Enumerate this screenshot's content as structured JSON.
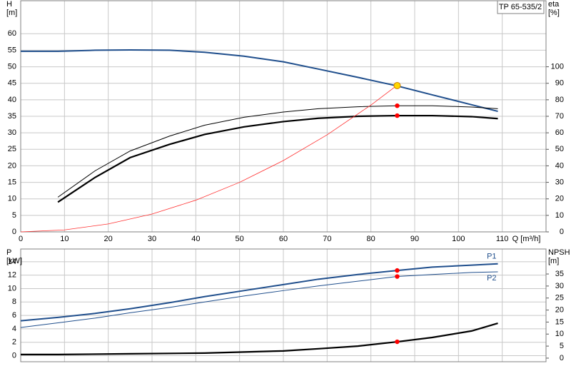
{
  "chart_data": [
    {
      "type": "line",
      "title": "TP 65-535/2",
      "ylabel": "H",
      "yunit": "[m]",
      "y2label": "eta",
      "y2unit": "[%]",
      "xlabel": "Q [m³/h]",
      "xlim": [
        0,
        120
      ],
      "xticks": [
        0,
        10,
        20,
        30,
        40,
        50,
        60,
        70,
        80,
        90,
        100,
        110
      ],
      "xtick_labels": true,
      "ylim": [
        0,
        70
      ],
      "yticks": [
        0,
        5,
        10,
        15,
        20,
        25,
        30,
        35,
        40,
        45,
        50,
        55,
        60
      ],
      "y2lim": [
        0,
        140
      ],
      "y2ticks": [
        0,
        10,
        20,
        30,
        40,
        50,
        60,
        70,
        80,
        90,
        100
      ],
      "grid": true,
      "series": [
        {
          "color": "#1f4e8c",
          "linewidth": 2,
          "axis": "y",
          "x": [
            0,
            8.5,
            17,
            25,
            34,
            42,
            51,
            60,
            68,
            77,
            86,
            94,
            103,
            109
          ],
          "values": [
            54.7,
            54.7,
            55,
            55.1,
            55,
            54.4,
            53.2,
            51.5,
            49.3,
            46.8,
            44.2,
            41.5,
            38.5,
            36.5
          ]
        },
        {
          "color": "#000000",
          "linewidth": 1,
          "axis": "y2",
          "x": [
            8.5,
            17,
            25,
            34,
            42,
            51,
            60,
            68,
            77,
            86,
            94,
            103,
            109
          ],
          "values": [
            21,
            37,
            49,
            58,
            64.6,
            69.4,
            72.6,
            74.6,
            75.8,
            76.4,
            76.4,
            75.6,
            74.6
          ]
        },
        {
          "color": "#000000",
          "linewidth": 2.2,
          "axis": "y2",
          "x": [
            8.5,
            17,
            25,
            34,
            42,
            51,
            60,
            68,
            77,
            86,
            94,
            103,
            109
          ],
          "values": [
            18,
            33,
            45,
            53,
            59,
            63.6,
            66.8,
            68.8,
            70,
            70.4,
            70.4,
            69.8,
            68.6
          ]
        },
        {
          "color": "#ff3030",
          "linewidth": 0.8,
          "axis": "y",
          "x": [
            0,
            10,
            20,
            30,
            40,
            50,
            60,
            70,
            80,
            86
          ],
          "values": [
            0,
            0.6,
            2.4,
            5.4,
            9.6,
            15,
            21.6,
            29.4,
            38.4,
            44.4
          ]
        }
      ],
      "points": [
        {
          "x": 86,
          "y": 76.4,
          "axis": "y2",
          "color": "#ff0000"
        },
        {
          "x": 86,
          "y": 70.4,
          "axis": "y2",
          "color": "#ff0000"
        },
        {
          "x": 86,
          "y": 44.3,
          "axis": "y",
          "color": "#ffd700"
        }
      ]
    },
    {
      "type": "line",
      "ylabel": "P",
      "yunit": "[kW]",
      "y2label": "NPSH",
      "y2unit": "[m]",
      "xlim": [
        0,
        120
      ],
      "xticks": [
        0,
        10,
        20,
        30,
        40,
        50,
        60,
        70,
        80,
        90,
        100,
        110
      ],
      "xtick_labels": false,
      "ylim": [
        -0.9,
        15.9
      ],
      "yticks": [
        0,
        2,
        4,
        6,
        8,
        10,
        12,
        14
      ],
      "y2lim": [
        -1.5,
        45.4
      ],
      "y2ticks": [
        0,
        5,
        10,
        15,
        20,
        25,
        30,
        35
      ],
      "grid": true,
      "series": [
        {
          "name": "P1",
          "color": "#1f4e8c",
          "linewidth": 2,
          "axis": "y",
          "x": [
            0,
            8.5,
            17,
            25,
            34,
            42,
            51,
            60,
            68,
            77,
            86,
            94,
            103,
            109
          ],
          "values": [
            5.2,
            5.7,
            6.3,
            7.0,
            7.9,
            8.8,
            9.7,
            10.6,
            11.4,
            12.1,
            12.7,
            13.2,
            13.5,
            13.7
          ]
        },
        {
          "name": "P2",
          "color": "#1f4e8c",
          "linewidth": 1,
          "axis": "y",
          "x": [
            0,
            8.5,
            17,
            25,
            34,
            42,
            51,
            60,
            68,
            77,
            86,
            94,
            103,
            109
          ],
          "values": [
            4.2,
            4.9,
            5.6,
            6.4,
            7.2,
            8.0,
            8.9,
            9.7,
            10.4,
            11.1,
            11.8,
            12.1,
            12.4,
            12.5
          ]
        },
        {
          "color": "#000000",
          "linewidth": 2.2,
          "axis": "y2",
          "x": [
            0,
            8.5,
            25,
            42,
            60,
            68,
            77,
            86,
            94,
            103,
            109
          ],
          "values": [
            1.5,
            1.5,
            1.8,
            2.1,
            3,
            3.9,
            5,
            6.8,
            8.6,
            11.3,
            14.5
          ]
        }
      ],
      "points": [
        {
          "x": 86,
          "y": 12.7,
          "axis": "y",
          "color": "#ff0000"
        },
        {
          "x": 86,
          "y": 11.8,
          "axis": "y",
          "color": "#ff0000"
        },
        {
          "x": 86,
          "y": 6.8,
          "axis": "y2",
          "color": "#ff0000"
        }
      ]
    }
  ]
}
